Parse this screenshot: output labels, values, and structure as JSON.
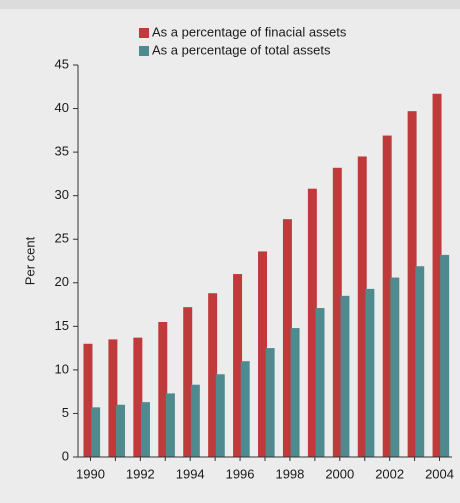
{
  "chart_data": {
    "type": "bar",
    "y_label": "Per cent",
    "categories": [
      "1990",
      null,
      "1992",
      null,
      "1994",
      null,
      "1996",
      null,
      "1998",
      null,
      "2000",
      null,
      "2002",
      null,
      "2004"
    ],
    "series": [
      {
        "name": "As a percentage of finacial assets",
        "color": "#c0393b",
        "values": [
          13.0,
          13.5,
          13.7,
          15.5,
          17.2,
          18.8,
          21.0,
          23.6,
          27.3,
          30.8,
          33.2,
          34.5,
          36.9,
          39.7,
          41.7
        ]
      },
      {
        "name": "As a percentage of total assets",
        "color": "#4f8a8f",
        "values": [
          5.7,
          6.0,
          6.3,
          7.3,
          8.3,
          9.5,
          11.0,
          12.5,
          14.8,
          17.1,
          18.5,
          19.3,
          20.6,
          21.9,
          23.2
        ]
      }
    ],
    "ylim": [
      0,
      45
    ],
    "yticks": [
      0,
      5,
      10,
      15,
      20,
      25,
      30,
      35,
      40,
      45
    ]
  }
}
